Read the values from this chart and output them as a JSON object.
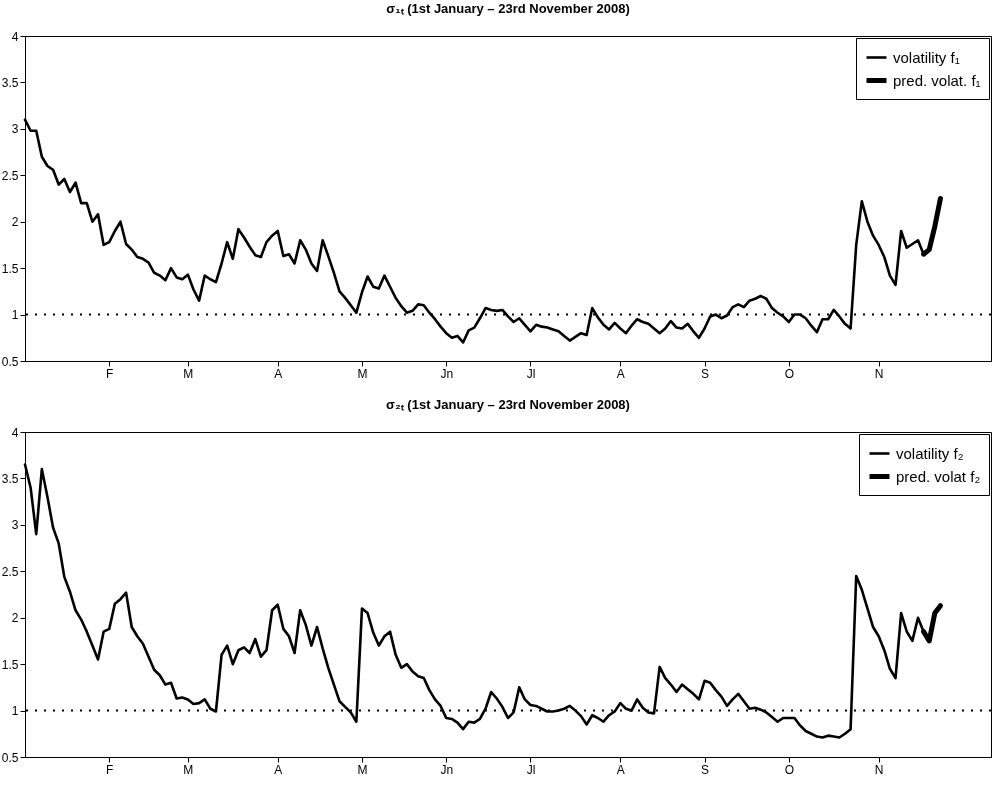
{
  "chart_data": [
    {
      "type": "line",
      "title": "σ₁ₜ (1st January – 23rd November 2008)",
      "ylim": [
        0.5,
        4
      ],
      "yticks": [
        0.5,
        1,
        1.5,
        2,
        2.5,
        3,
        3.5,
        4
      ],
      "legend": "top right",
      "ref_lines": [
        {
          "axis": "y",
          "value": 1,
          "line_style": "dotted",
          "color": "#000000"
        }
      ],
      "categories": [
        null,
        null,
        null,
        null,
        null,
        null,
        null,
        null,
        null,
        null,
        null,
        null,
        null,
        null,
        null,
        "F",
        null,
        null,
        null,
        null,
        null,
        null,
        null,
        null,
        null,
        null,
        null,
        null,
        null,
        "M",
        null,
        null,
        null,
        null,
        null,
        null,
        null,
        null,
        null,
        null,
        null,
        null,
        null,
        null,
        null,
        "A",
        null,
        null,
        null,
        null,
        null,
        null,
        null,
        null,
        null,
        null,
        null,
        null,
        null,
        null,
        "M",
        null,
        null,
        null,
        null,
        null,
        null,
        null,
        null,
        null,
        null,
        null,
        null,
        null,
        null,
        "Jn",
        null,
        null,
        null,
        null,
        null,
        null,
        null,
        null,
        null,
        null,
        null,
        null,
        null,
        null,
        "Jl",
        null,
        null,
        null,
        null,
        null,
        null,
        null,
        null,
        null,
        null,
        null,
        null,
        null,
        null,
        null,
        "A",
        null,
        null,
        null,
        null,
        null,
        null,
        null,
        null,
        null,
        null,
        null,
        null,
        null,
        null,
        "S",
        null,
        null,
        null,
        null,
        null,
        null,
        null,
        null,
        null,
        null,
        null,
        null,
        null,
        null,
        "O",
        null,
        null,
        null,
        null,
        null,
        null,
        null,
        null,
        null,
        null,
        null,
        null,
        null,
        null,
        null,
        "N",
        null,
        null,
        null,
        null,
        null,
        null,
        null,
        null,
        null,
        null,
        null,
        null,
        null,
        null,
        null,
        null,
        null,
        null,
        null,
        null
      ],
      "series": [
        {
          "name": "volatility f₁",
          "color": "#000000",
          "values": [
            3.1,
            2.98,
            2.98,
            2.7,
            2.6,
            2.56,
            2.4,
            2.46,
            2.32,
            2.42,
            2.2,
            2.2,
            2.0,
            2.08,
            1.75,
            1.78,
            1.9,
            2.0,
            1.76,
            1.7,
            1.62,
            1.6,
            1.56,
            1.45,
            1.42,
            1.37,
            1.5,
            1.4,
            1.38,
            1.43,
            1.27,
            1.15,
            1.42,
            1.38,
            1.35,
            1.55,
            1.78,
            1.6,
            1.92,
            1.83,
            1.73,
            1.64,
            1.62,
            1.78,
            1.85,
            1.9,
            1.63,
            1.65,
            1.55,
            1.8,
            1.7,
            1.55,
            1.47,
            1.8,
            1.63,
            1.45,
            1.25,
            1.18,
            1.1,
            1.02,
            1.24,
            1.41,
            1.3,
            1.28,
            1.42,
            1.3,
            1.18,
            1.09,
            1.02,
            1.04,
            1.11,
            1.1,
            1.02,
            0.95,
            0.87,
            0.8,
            0.75,
            0.77,
            0.7,
            0.83,
            0.86,
            0.96,
            1.07,
            1.05,
            1.04,
            1.05,
            0.98,
            0.92,
            0.96,
            0.89,
            0.82,
            0.89,
            0.87,
            0.86,
            0.84,
            0.82,
            0.77,
            0.72,
            0.76,
            0.8,
            0.78,
            1.07,
            0.97,
            0.89,
            0.84,
            0.91,
            0.85,
            0.8,
            0.88,
            0.95,
            0.92,
            0.9,
            0.85,
            0.8,
            0.85,
            0.93,
            0.86,
            0.85,
            0.9,
            0.82,
            0.75,
            0.85,
            0.98,
            1.0,
            0.96,
            0.99,
            1.08,
            1.11,
            1.08,
            1.15,
            1.17,
            1.2,
            1.17,
            1.07,
            1.02,
            0.98,
            0.92,
            1.0,
            1.0,
            0.96,
            0.88,
            0.81,
            0.95,
            0.95,
            1.05,
            0.98,
            0.9,
            0.85,
            1.75,
            2.22,
            2.0,
            1.85,
            1.75,
            1.62,
            1.42,
            1.32,
            1.9,
            1.72,
            1.76,
            1.8,
            1.65,
            1.7,
            1.95,
            2.25,
            null,
            null,
            null,
            null,
            null,
            null,
            null,
            null,
            null
          ]
        },
        {
          "name": "pred. volat. f₁",
          "color": "#000000",
          "values": [
            null,
            null,
            null,
            null,
            null,
            null,
            null,
            null,
            null,
            null,
            null,
            null,
            null,
            null,
            null,
            null,
            null,
            null,
            null,
            null,
            null,
            null,
            null,
            null,
            null,
            null,
            null,
            null,
            null,
            null,
            null,
            null,
            null,
            null,
            null,
            null,
            null,
            null,
            null,
            null,
            null,
            null,
            null,
            null,
            null,
            null,
            null,
            null,
            null,
            null,
            null,
            null,
            null,
            null,
            null,
            null,
            null,
            null,
            null,
            null,
            null,
            null,
            null,
            null,
            null,
            null,
            null,
            null,
            null,
            null,
            null,
            null,
            null,
            null,
            null,
            null,
            null,
            null,
            null,
            null,
            null,
            null,
            null,
            null,
            null,
            null,
            null,
            null,
            null,
            null,
            null,
            null,
            null,
            null,
            null,
            null,
            null,
            null,
            null,
            null,
            null,
            null,
            null,
            null,
            null,
            null,
            null,
            null,
            null,
            null,
            null,
            null,
            null,
            null,
            null,
            null,
            null,
            null,
            null,
            null,
            null,
            null,
            null,
            null,
            null,
            null,
            null,
            null,
            null,
            null,
            null,
            null,
            null,
            null,
            null,
            null,
            null,
            null,
            null,
            null,
            null,
            null,
            null,
            null,
            null,
            null,
            null,
            null,
            null,
            null,
            null,
            null,
            null,
            null,
            null,
            null,
            null,
            null,
            null,
            null,
            1.65,
            1.7,
            1.95,
            2.25,
            null,
            null,
            null,
            null,
            null,
            null,
            null,
            null,
            null
          ]
        }
      ]
    },
    {
      "type": "line",
      "title": "σ₂ₜ (1st January – 23rd November 2008)",
      "ylim": [
        0.5,
        4
      ],
      "yticks": [
        0.5,
        1,
        1.5,
        2,
        2.5,
        3,
        3.5,
        4
      ],
      "legend": "top right",
      "ref_lines": [
        {
          "axis": "y",
          "value": 1,
          "line_style": "dotted",
          "color": "#000000"
        }
      ],
      "categories": [
        null,
        null,
        null,
        null,
        null,
        null,
        null,
        null,
        null,
        null,
        null,
        null,
        null,
        null,
        null,
        "F",
        null,
        null,
        null,
        null,
        null,
        null,
        null,
        null,
        null,
        null,
        null,
        null,
        null,
        "M",
        null,
        null,
        null,
        null,
        null,
        null,
        null,
        null,
        null,
        null,
        null,
        null,
        null,
        null,
        null,
        "A",
        null,
        null,
        null,
        null,
        null,
        null,
        null,
        null,
        null,
        null,
        null,
        null,
        null,
        null,
        "M",
        null,
        null,
        null,
        null,
        null,
        null,
        null,
        null,
        null,
        null,
        null,
        null,
        null,
        null,
        "Jn",
        null,
        null,
        null,
        null,
        null,
        null,
        null,
        null,
        null,
        null,
        null,
        null,
        null,
        null,
        "Jl",
        null,
        null,
        null,
        null,
        null,
        null,
        null,
        null,
        null,
        null,
        null,
        null,
        null,
        null,
        null,
        "A",
        null,
        null,
        null,
        null,
        null,
        null,
        null,
        null,
        null,
        null,
        null,
        null,
        null,
        null,
        "S",
        null,
        null,
        null,
        null,
        null,
        null,
        null,
        null,
        null,
        null,
        null,
        null,
        null,
        null,
        "O",
        null,
        null,
        null,
        null,
        null,
        null,
        null,
        null,
        null,
        null,
        null,
        null,
        null,
        null,
        null,
        "N",
        null,
        null,
        null,
        null,
        null,
        null,
        null,
        null,
        null,
        null,
        null,
        null,
        null,
        null,
        null,
        null,
        null,
        null,
        null,
        null
      ],
      "series": [
        {
          "name": "volatility f₂",
          "color": "#000000",
          "values": [
            3.65,
            3.4,
            2.9,
            3.6,
            3.3,
            2.97,
            2.8,
            2.44,
            2.28,
            2.08,
            1.98,
            1.85,
            1.7,
            1.55,
            1.85,
            1.88,
            2.15,
            2.2,
            2.27,
            1.9,
            1.8,
            1.72,
            1.58,
            1.44,
            1.38,
            1.28,
            1.3,
            1.13,
            1.14,
            1.12,
            1.07,
            1.08,
            1.12,
            1.02,
            0.99,
            1.6,
            1.7,
            1.5,
            1.65,
            1.68,
            1.62,
            1.77,
            1.58,
            1.65,
            2.08,
            2.14,
            1.88,
            1.8,
            1.62,
            2.08,
            1.92,
            1.7,
            1.9,
            1.67,
            1.46,
            1.28,
            1.1,
            1.04,
            0.98,
            0.88,
            2.1,
            2.05,
            1.84,
            1.7,
            1.8,
            1.85,
            1.6,
            1.46,
            1.5,
            1.42,
            1.37,
            1.35,
            1.22,
            1.12,
            1.05,
            0.92,
            0.91,
            0.87,
            0.8,
            0.88,
            0.87,
            0.91,
            1.02,
            1.2,
            1.13,
            1.04,
            0.92,
            0.98,
            1.25,
            1.12,
            1.06,
            1.05,
            1.02,
            0.99,
            0.99,
            1.0,
            1.02,
            1.05,
            1.0,
            0.94,
            0.85,
            0.95,
            0.92,
            0.88,
            0.95,
            0.99,
            1.08,
            1.02,
            1.0,
            1.12,
            1.03,
            0.98,
            0.97,
            1.47,
            1.35,
            1.28,
            1.2,
            1.28,
            1.23,
            1.18,
            1.12,
            1.32,
            1.3,
            1.22,
            1.15,
            1.05,
            1.12,
            1.18,
            1.1,
            1.02,
            1.03,
            1.01,
            0.98,
            0.93,
            0.88,
            0.92,
            0.92,
            0.92,
            0.84,
            0.78,
            0.75,
            0.72,
            0.71,
            0.73,
            0.72,
            0.71,
            0.75,
            0.8,
            2.45,
            2.3,
            2.1,
            1.9,
            1.8,
            1.65,
            1.45,
            1.35,
            2.05,
            1.85,
            1.75,
            2.0,
            1.85,
            1.75,
            2.05,
            2.13,
            null,
            null,
            null,
            null,
            null,
            null,
            null,
            null,
            null
          ]
        },
        {
          "name": "pred. volat f₂",
          "color": "#000000",
          "values": [
            null,
            null,
            null,
            null,
            null,
            null,
            null,
            null,
            null,
            null,
            null,
            null,
            null,
            null,
            null,
            null,
            null,
            null,
            null,
            null,
            null,
            null,
            null,
            null,
            null,
            null,
            null,
            null,
            null,
            null,
            null,
            null,
            null,
            null,
            null,
            null,
            null,
            null,
            null,
            null,
            null,
            null,
            null,
            null,
            null,
            null,
            null,
            null,
            null,
            null,
            null,
            null,
            null,
            null,
            null,
            null,
            null,
            null,
            null,
            null,
            null,
            null,
            null,
            null,
            null,
            null,
            null,
            null,
            null,
            null,
            null,
            null,
            null,
            null,
            null,
            null,
            null,
            null,
            null,
            null,
            null,
            null,
            null,
            null,
            null,
            null,
            null,
            null,
            null,
            null,
            null,
            null,
            null,
            null,
            null,
            null,
            null,
            null,
            null,
            null,
            null,
            null,
            null,
            null,
            null,
            null,
            null,
            null,
            null,
            null,
            null,
            null,
            null,
            null,
            null,
            null,
            null,
            null,
            null,
            null,
            null,
            null,
            null,
            null,
            null,
            null,
            null,
            null,
            null,
            null,
            null,
            null,
            null,
            null,
            null,
            null,
            null,
            null,
            null,
            null,
            null,
            null,
            null,
            null,
            null,
            null,
            null,
            null,
            null,
            null,
            null,
            null,
            null,
            null,
            null,
            null,
            null,
            null,
            null,
            null,
            1.85,
            1.75,
            2.05,
            2.13,
            null,
            null,
            null,
            null,
            null,
            null,
            null,
            null,
            null
          ]
        }
      ]
    }
  ]
}
